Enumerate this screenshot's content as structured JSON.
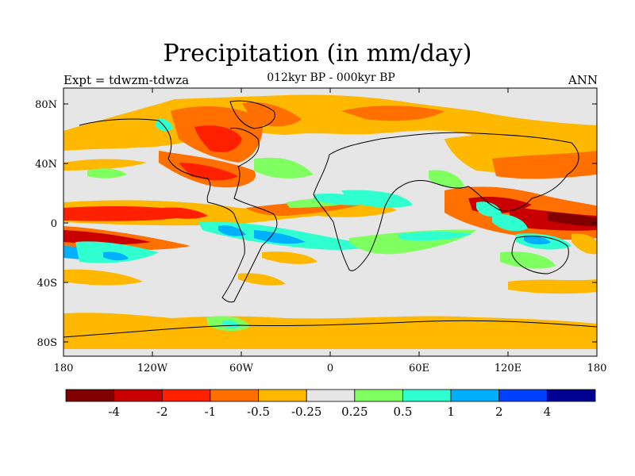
{
  "title": "Precipitation (in mm/day)",
  "subtitle": "012kyr BP - 000kyr BP",
  "left_label": "Expt = tdwzm-tdwza",
  "right_label": "ANN",
  "lon_ticks": [
    "180",
    "120W",
    "60W",
    "0",
    "60E",
    "120E",
    "180"
  ],
  "lat_ticks": [
    "80N",
    "40N",
    "0",
    "40S",
    "80S"
  ],
  "colorbar": {
    "colors": [
      "#800000",
      "#c80000",
      "#ff2000",
      "#ff7000",
      "#ffb800",
      "#e6e6e6",
      "#80ff60",
      "#30ffd0",
      "#00b0ff",
      "#0040ff",
      "#000090"
    ],
    "labels": [
      "-4",
      "-2",
      "-1",
      "-0.5",
      "-0.25",
      "0.25",
      "0.5",
      "1",
      "2",
      "4"
    ]
  }
}
